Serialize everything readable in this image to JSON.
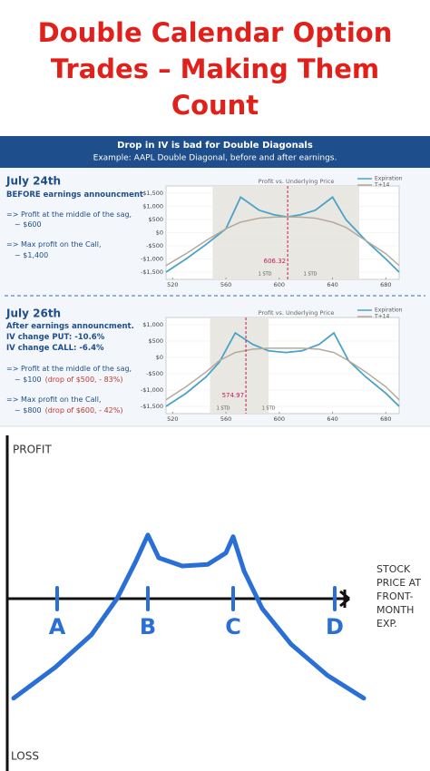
{
  "title_lines": [
    "Double Calendar Option",
    "Trades – Making Them",
    "Count"
  ],
  "banner": {
    "title": "Drop in IV is bad for Double Diagonals",
    "subtitle": "Example: AAPL Double Diagonal, before and after earnings."
  },
  "panels": [
    {
      "date": "July 24th",
      "lines": [
        {
          "text": "BEFORE earnings announcment",
          "bold": true
        },
        {
          "text": "=> Profit at the middle of the sag,"
        },
        {
          "text": "~ $600"
        },
        {
          "text": "=> Max profit on the Call,"
        },
        {
          "text": "~ $1,400"
        }
      ]
    },
    {
      "date": "July 26th",
      "lines": [
        {
          "text": "After earnings announcment.",
          "bold": true
        },
        {
          "text": "IV change PUT:   -10.6%",
          "bold": true
        },
        {
          "text": "IV change CALL:  -6.4%",
          "bold": true
        },
        {
          "text": "=> Profit at the middle of the sag,"
        },
        {
          "text": "~ $100",
          "note": "(drop of $500, - 83%)"
        },
        {
          "text": "=> Max profit on the Call,"
        },
        {
          "text": "~ $800",
          "note": "(drop of $600, - 42%)"
        }
      ]
    }
  ],
  "chart_data": [
    {
      "type": "line",
      "title": "Profit vs. Underlying Price",
      "x": [
        515,
        530,
        545,
        560,
        571,
        585,
        596,
        606,
        616,
        627,
        640,
        650,
        665,
        680,
        690
      ],
      "series": [
        {
          "name": "Expiration",
          "color": "#4aa3c7",
          "values": [
            -1500,
            -1000,
            -450,
            150,
            1350,
            850,
            680,
            600,
            680,
            850,
            1350,
            500,
            -300,
            -1000,
            -1500
          ]
        },
        {
          "name": "T+14",
          "color": "#b3aa9c",
          "values": [
            -1250,
            -800,
            -300,
            150,
            400,
            550,
            590,
            600,
            590,
            550,
            400,
            200,
            -300,
            -800,
            -1250
          ]
        }
      ],
      "xlim": [
        515,
        690
      ],
      "xticks": [
        520,
        560,
        600,
        640,
        680
      ],
      "ylim": [
        -1500,
        1500
      ],
      "yticks": [
        {
          "value": -1500,
          "label": "-$1,500"
        },
        {
          "value": -1000,
          "label": "-$1,000"
        },
        {
          "value": -500,
          "label": "-$500"
        },
        {
          "value": 0,
          "label": "$0"
        },
        {
          "value": 500,
          "label": "$500"
        },
        {
          "value": 1000,
          "label": "$1,000"
        },
        {
          "value": 1500,
          "label": "$1,500"
        }
      ],
      "grid": true,
      "shaded_range": [
        550,
        660
      ],
      "marker": 606.32,
      "std_labels": [
        "1 STD",
        "1 STD"
      ]
    },
    {
      "type": "line",
      "title": "Profit vs. Underlying Price",
      "x": [
        515,
        530,
        545,
        555,
        567,
        580,
        592,
        605,
        617,
        630,
        641,
        652,
        665,
        680,
        690
      ],
      "series": [
        {
          "name": "Expiration",
          "color": "#4aa3c7",
          "values": [
            -1500,
            -1100,
            -600,
            -150,
            750,
            400,
            200,
            150,
            200,
            400,
            750,
            -100,
            -600,
            -1100,
            -1500
          ]
        },
        {
          "name": "T+14",
          "color": "#b3aa9c",
          "values": [
            -1300,
            -900,
            -450,
            -100,
            150,
            250,
            280,
            280,
            280,
            250,
            150,
            -100,
            -450,
            -900,
            -1300
          ]
        }
      ],
      "xlim": [
        515,
        690
      ],
      "xticks": [
        520,
        560,
        600,
        640,
        680
      ],
      "ylim": [
        -1500,
        1000
      ],
      "yticks": [
        {
          "value": -1500,
          "label": "-$1,500"
        },
        {
          "value": -1000,
          "label": "-$1,000"
        },
        {
          "value": -500,
          "label": "-$500"
        },
        {
          "value": 0,
          "label": "$0"
        },
        {
          "value": 500,
          "label": "$500"
        },
        {
          "value": 1000,
          "label": "$1,000"
        }
      ],
      "grid": true,
      "shaded_range": [
        548,
        592
      ],
      "marker": 574.97,
      "std_labels": [
        "1 STD",
        "1 STD"
      ]
    },
    {
      "type": "sketch",
      "y_label_top": "PROFIT",
      "y_label_bottom": "LOSS",
      "x_label_lines": [
        "STOCK",
        "PRICE AT",
        "FRONT-",
        "MONTH",
        "EXP."
      ],
      "x": [
        0.25,
        1.4,
        2.4,
        3.1,
        3.6,
        3.95,
        4.25,
        4.9,
        5.6,
        6.1,
        6.3,
        6.6,
        7.1,
        7.9,
        8.9,
        9.9
      ],
      "series": [
        {
          "color": "#2a6fd6",
          "values": [
            -3.05,
            -2.1,
            -1.1,
            0,
            1.1,
            1.95,
            1.25,
            1.0,
            1.05,
            1.4,
            1.9,
            0.85,
            -0.3,
            -1.4,
            -2.35,
            -3.05
          ]
        }
      ],
      "xlim": [
        0,
        11
      ],
      "ylim": [
        -5,
        5
      ],
      "xticks": [
        {
          "value": 1.45,
          "label": "A"
        },
        {
          "value": 3.95,
          "label": "B"
        },
        {
          "value": 6.3,
          "label": "C"
        },
        {
          "value": 9.1,
          "label": "D"
        }
      ]
    }
  ]
}
